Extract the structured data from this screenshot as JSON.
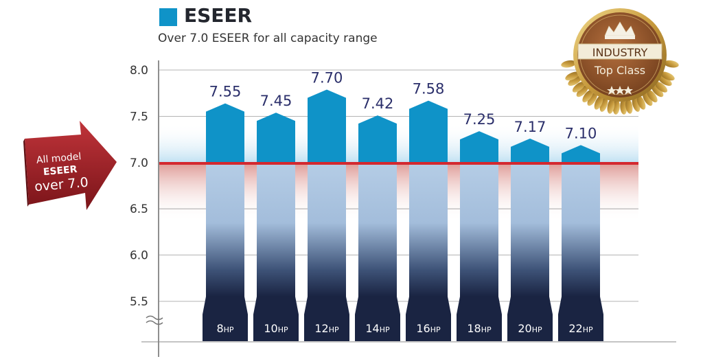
{
  "chart_data": {
    "type": "bar",
    "legend": "ESEER",
    "subtitle": "Over 7.0 ESEER for all capacity range",
    "categories": [
      {
        "num": "8",
        "unit": "HP"
      },
      {
        "num": "10",
        "unit": "HP"
      },
      {
        "num": "12",
        "unit": "HP"
      },
      {
        "num": "14",
        "unit": "HP"
      },
      {
        "num": "16",
        "unit": "HP"
      },
      {
        "num": "18",
        "unit": "HP"
      },
      {
        "num": "20",
        "unit": "HP"
      },
      {
        "num": "22",
        "unit": "HP"
      }
    ],
    "values": [
      7.55,
      7.45,
      7.7,
      7.42,
      7.58,
      7.25,
      7.17,
      7.1
    ],
    "yticks": [
      "5.5",
      "6.0",
      "6.5",
      "7.0",
      "7.5",
      "8.0"
    ],
    "ylim": [
      5.5,
      8.0
    ],
    "axis_break": true,
    "threshold": 7.0,
    "grid": true,
    "colors": {
      "bar_top": "#0f93c8",
      "threshold": "#d4282f",
      "base": "#1a2442",
      "label": "#2a2e6a"
    },
    "arrow": {
      "line1": "All model",
      "line2": "ESEER",
      "line3": "over 7.0"
    },
    "badge": {
      "line1": "INDUSTRY",
      "line2": "Top Class"
    }
  }
}
